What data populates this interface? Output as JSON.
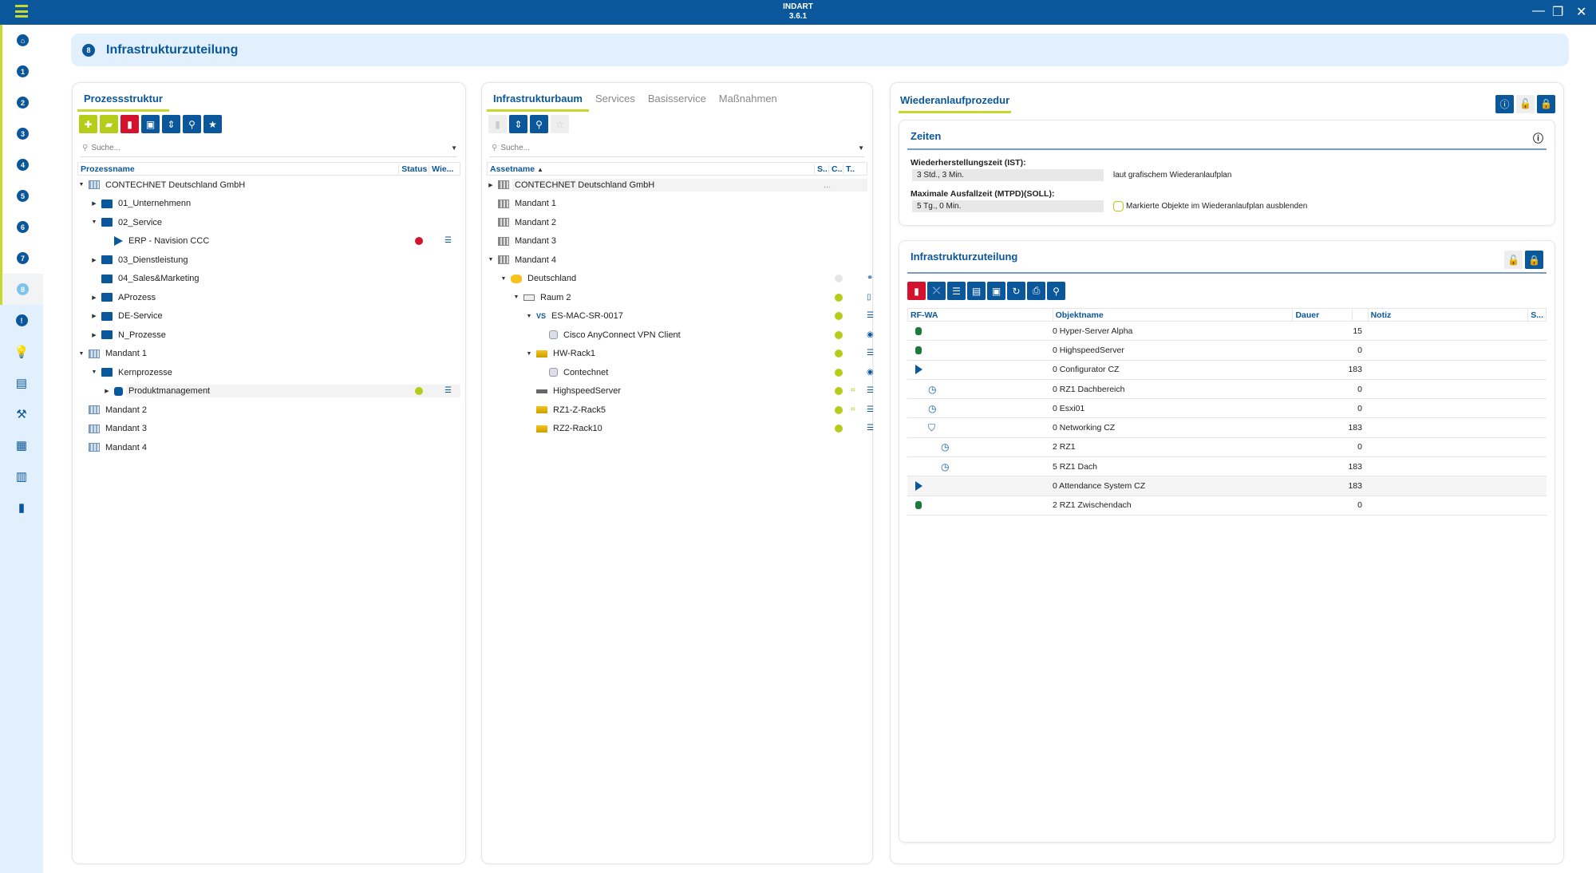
{
  "app": {
    "title": "INDART",
    "version": "3.6.1",
    "accent": "#0b579b",
    "lime": "#b5cc18"
  },
  "window": {
    "minimize": "—",
    "maximize": "❐",
    "close": "✕"
  },
  "sidebar": {
    "items": [
      {
        "icon": "home-icon",
        "label": "⌂"
      },
      {
        "label": "1"
      },
      {
        "label": "2"
      },
      {
        "label": "3"
      },
      {
        "label": "4"
      },
      {
        "label": "5"
      },
      {
        "label": "6"
      },
      {
        "label": "7"
      },
      {
        "label": "8",
        "active": true
      },
      {
        "label": "!"
      },
      {
        "icon": "lightbulb-icon",
        "label": "💡"
      },
      {
        "icon": "clipboard-list-icon",
        "label": "▤"
      },
      {
        "icon": "wrench-clock-icon",
        "label": "⚒"
      },
      {
        "icon": "dashboard-icon",
        "label": "▦"
      },
      {
        "icon": "report-icon",
        "label": "▥"
      },
      {
        "icon": "clipboard-icon",
        "label": "▮"
      }
    ]
  },
  "header": {
    "badge": "8",
    "title": "Infrastrukturzuteilung"
  },
  "left": {
    "tab": "Prozessstruktur",
    "search_placeholder": "Suche...",
    "columns": [
      "Prozessname",
      "Status",
      "Wie..."
    ],
    "rows": [
      {
        "d": 0,
        "e": "open",
        "i": "bld",
        "t": "CONTECHNET Deutschland GmbH"
      },
      {
        "d": 1,
        "e": "closed",
        "i": "fld",
        "t": "01_Unternehmenn"
      },
      {
        "d": 1,
        "e": "open",
        "i": "fld",
        "t": "02_Service"
      },
      {
        "d": 2,
        "e": "",
        "i": "play",
        "t": "ERP - Navision CCC",
        "s": "#d3132d",
        "w": true
      },
      {
        "d": 1,
        "e": "closed",
        "i": "fld",
        "t": "03_Dienstleistung"
      },
      {
        "d": 1,
        "e": "",
        "i": "fld",
        "t": "04_Sales&Marketing"
      },
      {
        "d": 1,
        "e": "closed",
        "i": "fld",
        "t": "AProzess"
      },
      {
        "d": 1,
        "e": "closed",
        "i": "fld",
        "t": "DE-Service"
      },
      {
        "d": 1,
        "e": "closed",
        "i": "fld",
        "t": "N_Prozesse"
      },
      {
        "d": 0,
        "e": "open",
        "i": "bld",
        "t": "Mandant 1"
      },
      {
        "d": 1,
        "e": "open",
        "i": "fld",
        "t": "Kernprozesse"
      },
      {
        "d": 2,
        "e": "closed",
        "i": "sq",
        "t": "Produktmanagement",
        "s": "#b5cc18",
        "w": true,
        "sel": true
      },
      {
        "d": 0,
        "e": "",
        "i": "bld",
        "t": "Mandant 2"
      },
      {
        "d": 0,
        "e": "",
        "i": "bld",
        "t": "Mandant 3"
      },
      {
        "d": 0,
        "e": "",
        "i": "bld",
        "t": "Mandant 4"
      }
    ]
  },
  "middle": {
    "tabs": [
      "Infrastrukturbaum",
      "Services",
      "Basisservice",
      "Maßnahmen"
    ],
    "search_placeholder": "Suche...",
    "columns": [
      "Assetname",
      "S..",
      "C..",
      "T.."
    ],
    "rows": [
      {
        "d": 0,
        "e": "closed",
        "i": "gbld",
        "t": "CONTECHNET Deutschland GmbH",
        "sel": true,
        "more": "..."
      },
      {
        "d": 0,
        "e": "",
        "i": "gbld",
        "t": "Mandant 1"
      },
      {
        "d": 0,
        "e": "",
        "i": "gbld",
        "t": "Mandant 2"
      },
      {
        "d": 0,
        "e": "",
        "i": "gbld",
        "t": "Mandant 3"
      },
      {
        "d": 0,
        "e": "open",
        "i": "gbld",
        "t": "Mandant 4"
      },
      {
        "d": 1,
        "e": "open",
        "i": "de",
        "t": "Deutschland",
        "s": "#e6e6e6",
        "ty": "network-icon"
      },
      {
        "d": 2,
        "e": "open",
        "i": "room",
        "t": "Raum 2",
        "s": "#b5cc18",
        "ty": "door-icon"
      },
      {
        "d": 3,
        "e": "open",
        "i": "vs",
        "t": "ES-MAC-SR-0017",
        "s": "#b5cc18",
        "ty": "server-list-icon"
      },
      {
        "d": 4,
        "e": "",
        "i": "db",
        "t": "Cisco AnyConnect VPN Client",
        "s": "#b5cc18",
        "ty": "service-circle-icon"
      },
      {
        "d": 3,
        "e": "open",
        "i": "rack",
        "t": "HW-Rack1",
        "s": "#b5cc18",
        "ty": "server-list-icon"
      },
      {
        "d": 4,
        "e": "",
        "i": "db",
        "t": "Contechnet",
        "s": "#b5cc18",
        "ty": "service-circle-icon"
      },
      {
        "d": 3,
        "e": "",
        "i": "srv",
        "t": "HighspeedServer",
        "s": "#b5cc18",
        "c": true,
        "ty": "server-list-icon"
      },
      {
        "d": 3,
        "e": "",
        "i": "rack",
        "t": "RZ1-Z-Rack5",
        "s": "#b5cc18",
        "c": true,
        "ty": "server-list-icon"
      },
      {
        "d": 3,
        "e": "",
        "i": "rack",
        "t": "RZ2-Rack10",
        "s": "#b5cc18",
        "ty": "server-list-icon"
      }
    ]
  },
  "right": {
    "title": "Wiederanlaufprozedur",
    "zeiten": {
      "title": "Zeiten",
      "ist_label": "Wiederherstellungszeit (IST):",
      "ist_value": "3 Std., 3 Min.",
      "ist_note": "laut grafischem Wiederanlaufplan",
      "soll_label": "Maximale Ausfallzeit (MTPD)(SOLL):",
      "soll_value": "5 Tg., 0 Min.",
      "checkbox_label": "Markierte Objekte im Wiederanlaufplan ausblenden",
      "checked": false
    },
    "zuteilung": {
      "title": "Infrastrukturzuteilung",
      "columns": [
        "RF-WA",
        "Objektname",
        "Dauer",
        "Notiz",
        "S..."
      ],
      "rows": [
        {
          "d": 0,
          "m": "dot",
          "t": "0 Hyper-Server Alpha",
          "dur": "15"
        },
        {
          "d": 0,
          "m": "dot",
          "t": "0 HighspeedServer",
          "dur": "0"
        },
        {
          "d": 0,
          "m": "play",
          "t": "0 Configurator CZ",
          "dur": "183"
        },
        {
          "d": 1,
          "m": "clock",
          "t": "0 RZ1 Dachbereich",
          "dur": "0"
        },
        {
          "d": 1,
          "m": "clock",
          "t": "0 Esxi01",
          "dur": "0"
        },
        {
          "d": 1,
          "m": "shield",
          "t": "0 Networking CZ",
          "dur": "183"
        },
        {
          "d": 2,
          "m": "clock",
          "t": "2 RZ1",
          "dur": "0"
        },
        {
          "d": 2,
          "m": "clock",
          "t": "5 RZ1 Dach",
          "dur": "183"
        },
        {
          "d": 0,
          "m": "play",
          "t": "0 Attendance System CZ",
          "dur": "183",
          "alt": true
        },
        {
          "d": 0,
          "m": "dot",
          "t": "2 RZ1 Zwischendach",
          "dur": "0"
        }
      ]
    }
  }
}
